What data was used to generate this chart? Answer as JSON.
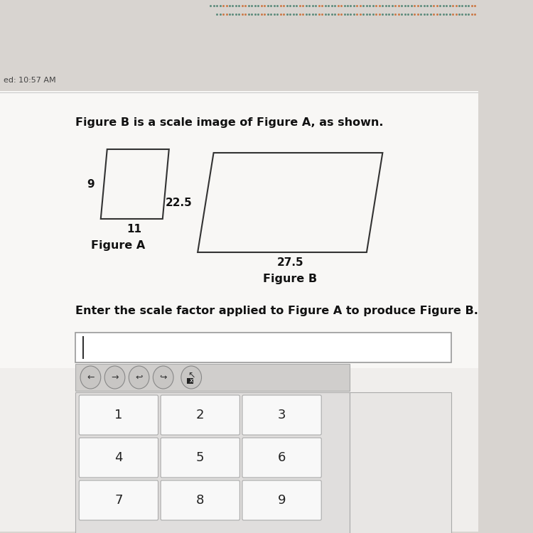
{
  "bg_color": "#d8d4d0",
  "white_bg": "#f5f3f1",
  "header_text": "ed: 10:57 AM",
  "header_fontsize": 8,
  "title_text": "Figure B is a scale image of Figure A, as shown.",
  "title_fontsize": 11.5,
  "fig_a_label": "Figure A",
  "fig_b_label": "Figure B",
  "fig_a_side_label": "9",
  "fig_a_bottom_label": "11",
  "fig_b_side_label": "22.5",
  "fig_b_bottom_label": "27.5",
  "question_text": "Enter the scale factor applied to Figure A to produce Figure B.",
  "question_fontsize": 11.5,
  "keypad_buttons": [
    [
      "1",
      "2",
      "3"
    ],
    [
      "4",
      "5",
      "6"
    ],
    [
      "7",
      "8",
      "9"
    ]
  ],
  "button_color": "#f8f8f8",
  "button_border": "#aaaaaa",
  "keypad_bg": "#e0dedd",
  "input_bg": "#ffffff",
  "arrow_bg": "#d0cecc",
  "dot_color1": "#5a8a7a",
  "dot_color2": "#cc7744"
}
